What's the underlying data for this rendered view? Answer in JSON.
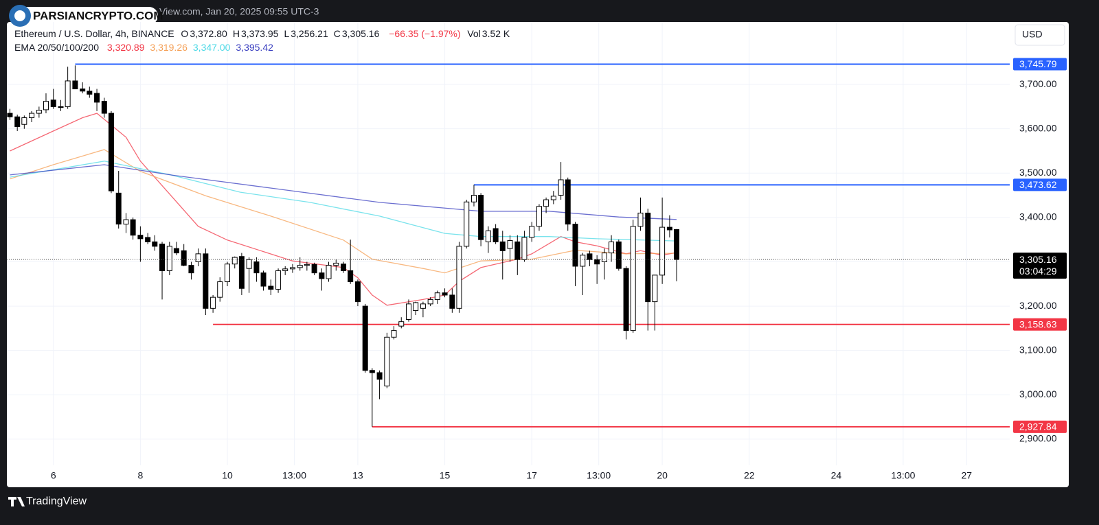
{
  "chart_data": {
    "type": "candlestick",
    "top_text": "View.com, Jan 20, 2025 09:55 UTC-3",
    "watermark": "PARSIANCRYPTO.COM",
    "brand": "TradingView",
    "currency": "USD",
    "title": "Ethereum / U.S. Dollar, 4h, BINANCE",
    "ohlc_legend": [
      {
        "key": "O",
        "value": "3,372.80"
      },
      {
        "key": "H",
        "value": "3,373.95"
      },
      {
        "key": "L",
        "value": "3,256.21"
      },
      {
        "key": "C",
        "value": "3,305.16"
      }
    ],
    "change": "−66.35 (−1.97%)",
    "volume": {
      "key": "Vol",
      "value": "3.52 K"
    },
    "x": [
      5,
      5.17,
      5.33,
      5.5,
      5.67,
      5.83,
      6,
      6.17,
      6.33,
      6.5,
      6.67,
      6.83,
      7,
      7.17,
      7.33,
      7.5,
      7.67,
      7.83,
      8,
      8.17,
      8.33,
      8.5,
      8.67,
      8.83,
      9,
      9.17,
      9.33,
      9.5,
      9.67,
      9.83,
      10,
      10.17,
      10.33,
      10.5,
      10.67,
      10.83,
      11,
      11.17,
      11.33,
      11.5,
      11.67,
      11.83,
      12,
      12.17,
      12.33,
      12.5,
      12.67,
      12.83,
      13,
      13.17,
      13.33,
      13.5,
      13.67,
      13.83,
      14,
      14.17,
      14.33,
      14.5,
      14.67,
      14.83,
      15,
      15.17,
      15.33,
      15.5,
      15.67,
      15.83,
      16,
      16.17,
      16.33,
      16.5,
      16.67,
      16.83,
      17,
      17.17,
      17.33,
      17.5,
      17.67,
      17.83,
      18,
      18.17,
      18.33,
      18.5,
      18.67,
      18.83,
      19,
      19.17,
      19.33,
      19.5,
      19.67,
      19.83,
      20,
      20.17,
      20.33
    ],
    "candles": [
      [
        3635,
        3645,
        3620,
        3627
      ],
      [
        3627,
        3632,
        3595,
        3605
      ],
      [
        3610,
        3630,
        3600,
        3625
      ],
      [
        3625,
        3640,
        3615,
        3635
      ],
      [
        3635,
        3650,
        3625,
        3642
      ],
      [
        3643,
        3680,
        3635,
        3662
      ],
      [
        3665,
        3690,
        3645,
        3650
      ],
      [
        3650,
        3665,
        3640,
        3648
      ],
      [
        3650,
        3740,
        3645,
        3708
      ],
      [
        3708,
        3743,
        3690,
        3690
      ],
      [
        3690,
        3705,
        3680,
        3685
      ],
      [
        3685,
        3695,
        3670,
        3678
      ],
      [
        3680,
        3690,
        3640,
        3660
      ],
      [
        3662,
        3670,
        3625,
        3635
      ],
      [
        3635,
        3640,
        3455,
        3460
      ],
      [
        3455,
        3505,
        3375,
        3385
      ],
      [
        3385,
        3410,
        3365,
        3395
      ],
      [
        3395,
        3400,
        3350,
        3360
      ],
      [
        3360,
        3380,
        3300,
        3352
      ],
      [
        3355,
        3365,
        3340,
        3345
      ],
      [
        3345,
        3360,
        3325,
        3335
      ],
      [
        3340,
        3345,
        3215,
        3280
      ],
      [
        3280,
        3345,
        3270,
        3335
      ],
      [
        3330,
        3345,
        3315,
        3320
      ],
      [
        3325,
        3340,
        3290,
        3292
      ],
      [
        3292,
        3300,
        3260,
        3275
      ],
      [
        3300,
        3330,
        3290,
        3318
      ],
      [
        3318,
        3330,
        3180,
        3195
      ],
      [
        3195,
        3225,
        3185,
        3220
      ],
      [
        3220,
        3265,
        3210,
        3255
      ],
      [
        3255,
        3300,
        3245,
        3295
      ],
      [
        3295,
        3312,
        3285,
        3310
      ],
      [
        3312,
        3320,
        3225,
        3240
      ],
      [
        3285,
        3310,
        3230,
        3305
      ],
      [
        3300,
        3310,
        3255,
        3275
      ],
      [
        3275,
        3280,
        3235,
        3245
      ],
      [
        3245,
        3260,
        3225,
        3238
      ],
      [
        3238,
        3285,
        3230,
        3280
      ],
      [
        3280,
        3290,
        3270,
        3284
      ],
      [
        3284,
        3295,
        3275,
        3287
      ],
      [
        3287,
        3310,
        3280,
        3292
      ],
      [
        3292,
        3300,
        3280,
        3294
      ],
      [
        3294,
        3298,
        3270,
        3275
      ],
      [
        3275,
        3285,
        3235,
        3262
      ],
      [
        3262,
        3300,
        3255,
        3292
      ],
      [
        3292,
        3305,
        3280,
        3297
      ],
      [
        3295,
        3300,
        3275,
        3280
      ],
      [
        3280,
        3350,
        3250,
        3255
      ],
      [
        3255,
        3260,
        3200,
        3210
      ],
      [
        3200,
        3205,
        3050,
        3055
      ],
      [
        3055,
        3060,
        2928,
        3050
      ],
      [
        3050,
        3055,
        2990,
        3035
      ],
      [
        3020,
        3140,
        3015,
        3130
      ],
      [
        3130,
        3155,
        3125,
        3145
      ],
      [
        3155,
        3175,
        3150,
        3165
      ],
      [
        3170,
        3215,
        3165,
        3205
      ],
      [
        3190,
        3210,
        3180,
        3208
      ],
      [
        3195,
        3210,
        3175,
        3205
      ],
      [
        3205,
        3220,
        3200,
        3215
      ],
      [
        3215,
        3235,
        3205,
        3230
      ],
      [
        3230,
        3240,
        3220,
        3225
      ],
      [
        3225,
        3240,
        3185,
        3195
      ],
      [
        3195,
        3345,
        3185,
        3335
      ],
      [
        3335,
        3440,
        3330,
        3435
      ],
      [
        3435,
        3474,
        3425,
        3450
      ],
      [
        3450,
        3455,
        3335,
        3350
      ],
      [
        3345,
        3380,
        3320,
        3370
      ],
      [
        3375,
        3385,
        3340,
        3345
      ],
      [
        3345,
        3370,
        3260,
        3325
      ],
      [
        3330,
        3360,
        3300,
        3348
      ],
      [
        3345,
        3360,
        3270,
        3305
      ],
      [
        3305,
        3370,
        3300,
        3355
      ],
      [
        3355,
        3390,
        3345,
        3380
      ],
      [
        3380,
        3430,
        3370,
        3425
      ],
      [
        3425,
        3445,
        3410,
        3440
      ],
      [
        3440,
        3460,
        3430,
        3448
      ],
      [
        3450,
        3525,
        3440,
        3485
      ],
      [
        3485,
        3490,
        3370,
        3385
      ],
      [
        3385,
        3390,
        3245,
        3290
      ],
      [
        3290,
        3320,
        3225,
        3315
      ],
      [
        3318,
        3325,
        3290,
        3305
      ],
      [
        3305,
        3315,
        3250,
        3295
      ],
      [
        3300,
        3330,
        3260,
        3320
      ],
      [
        3320,
        3360,
        3300,
        3345
      ],
      [
        3345,
        3350,
        3280,
        3285
      ],
      [
        3285,
        3290,
        3125,
        3145
      ],
      [
        3145,
        3395,
        3140,
        3380
      ],
      [
        3380,
        3445,
        3370,
        3410
      ],
      [
        3410,
        3420,
        3145,
        3210
      ],
      [
        3210,
        3270,
        3145,
        3270
      ],
      [
        3270,
        3445,
        3250,
        3378
      ],
      [
        3378,
        3405,
        3355,
        3372
      ],
      [
        3372.8,
        3373.95,
        3256.21,
        3305.16
      ]
    ],
    "xlim": [
      4.93,
      27.99
    ],
    "xticks": [
      6,
      8,
      10,
      {
        "value": 11.54,
        "label": "13:00"
      },
      13,
      15,
      17,
      {
        "value": 18.54,
        "label": "13:00"
      },
      20,
      22,
      24,
      {
        "value": 25.54,
        "label": "13:00"
      },
      27
    ],
    "ylim": [
      2841,
      3841
    ],
    "yticks": [
      {
        "value": 2900,
        "label": "2,900.00"
      },
      {
        "value": 3000,
        "label": "3,000.00"
      },
      {
        "value": 3100,
        "label": "3,100.00"
      },
      {
        "value": 3200,
        "label": "3,200.00"
      },
      {
        "value": 3300,
        "label": "3,300.00"
      },
      {
        "value": 3400,
        "label": "3,400.00"
      },
      {
        "value": 3500,
        "label": "3,500.00"
      },
      {
        "value": 3600,
        "label": "3,600.00"
      },
      {
        "value": 3700,
        "label": "3,700.00"
      }
    ],
    "grid": true,
    "ema_legend": "EMA 20/50/100/200",
    "emas": [
      {
        "color": "#f23645",
        "label": "3,320.89",
        "x": [
          5,
          6,
          6.67,
          7,
          7.67,
          8,
          9.33,
          10,
          11.5,
          12.67,
          13,
          13.33,
          13.67,
          14.5,
          15,
          15.33,
          15.83,
          16.67,
          17,
          17.67,
          18,
          18.5,
          19.17,
          19.5,
          20,
          20.33
        ],
        "values": [
          3550,
          3595,
          3625,
          3635,
          3581,
          3527,
          3380,
          3349,
          3302,
          3287,
          3264,
          3225,
          3202,
          3215,
          3225,
          3256,
          3287,
          3306,
          3318,
          3357,
          3345,
          3336,
          3318,
          3325,
          3315,
          3320.89
        ]
      },
      {
        "color": "#f5a057",
        "label": "3,319.26",
        "x": [
          5,
          6,
          7.17,
          8,
          9.5,
          11,
          12.67,
          13.33,
          14.5,
          15,
          15.83,
          17,
          18,
          19.17,
          20.33
        ],
        "values": [
          3487,
          3519,
          3553,
          3504,
          3449,
          3403,
          3349,
          3306,
          3285,
          3275,
          3302,
          3306,
          3326,
          3318,
          3319.26
        ]
      },
      {
        "color": "#4dd9e6",
        "label": "3,347.00",
        "x": [
          5,
          7.17,
          8.7,
          10.3,
          11.9,
          13.5,
          15,
          15.83,
          17.4,
          18.5,
          20.33
        ],
        "values": [
          3491,
          3527,
          3496,
          3457,
          3434,
          3403,
          3364,
          3357,
          3357,
          3352,
          3347.0
        ]
      },
      {
        "color": "#3a3fc0",
        "label": "3,395.42",
        "x": [
          5,
          7.17,
          8.7,
          11.1,
          13.5,
          15.83,
          17.4,
          19,
          20.33
        ],
        "values": [
          3496,
          3519,
          3496,
          3465,
          3434,
          3414,
          3414,
          3401,
          3395.42
        ]
      }
    ],
    "levels": [
      {
        "value": 3745.79,
        "label": "3,745.79",
        "color": "#2962ff",
        "start": 6.5
      },
      {
        "value": 3473.62,
        "label": "3,473.62",
        "color": "#2962ff",
        "start": 15.67
      },
      {
        "value": 3158.63,
        "label": "3,158.63",
        "color": "#f23645",
        "start": 9.67
      },
      {
        "value": 2927.84,
        "label": "2,927.84",
        "color": "#f23645",
        "start": 13.33
      }
    ],
    "last_price": {
      "value": 3305.16,
      "label": "3,305.16"
    },
    "countdown": "03:04:29"
  }
}
